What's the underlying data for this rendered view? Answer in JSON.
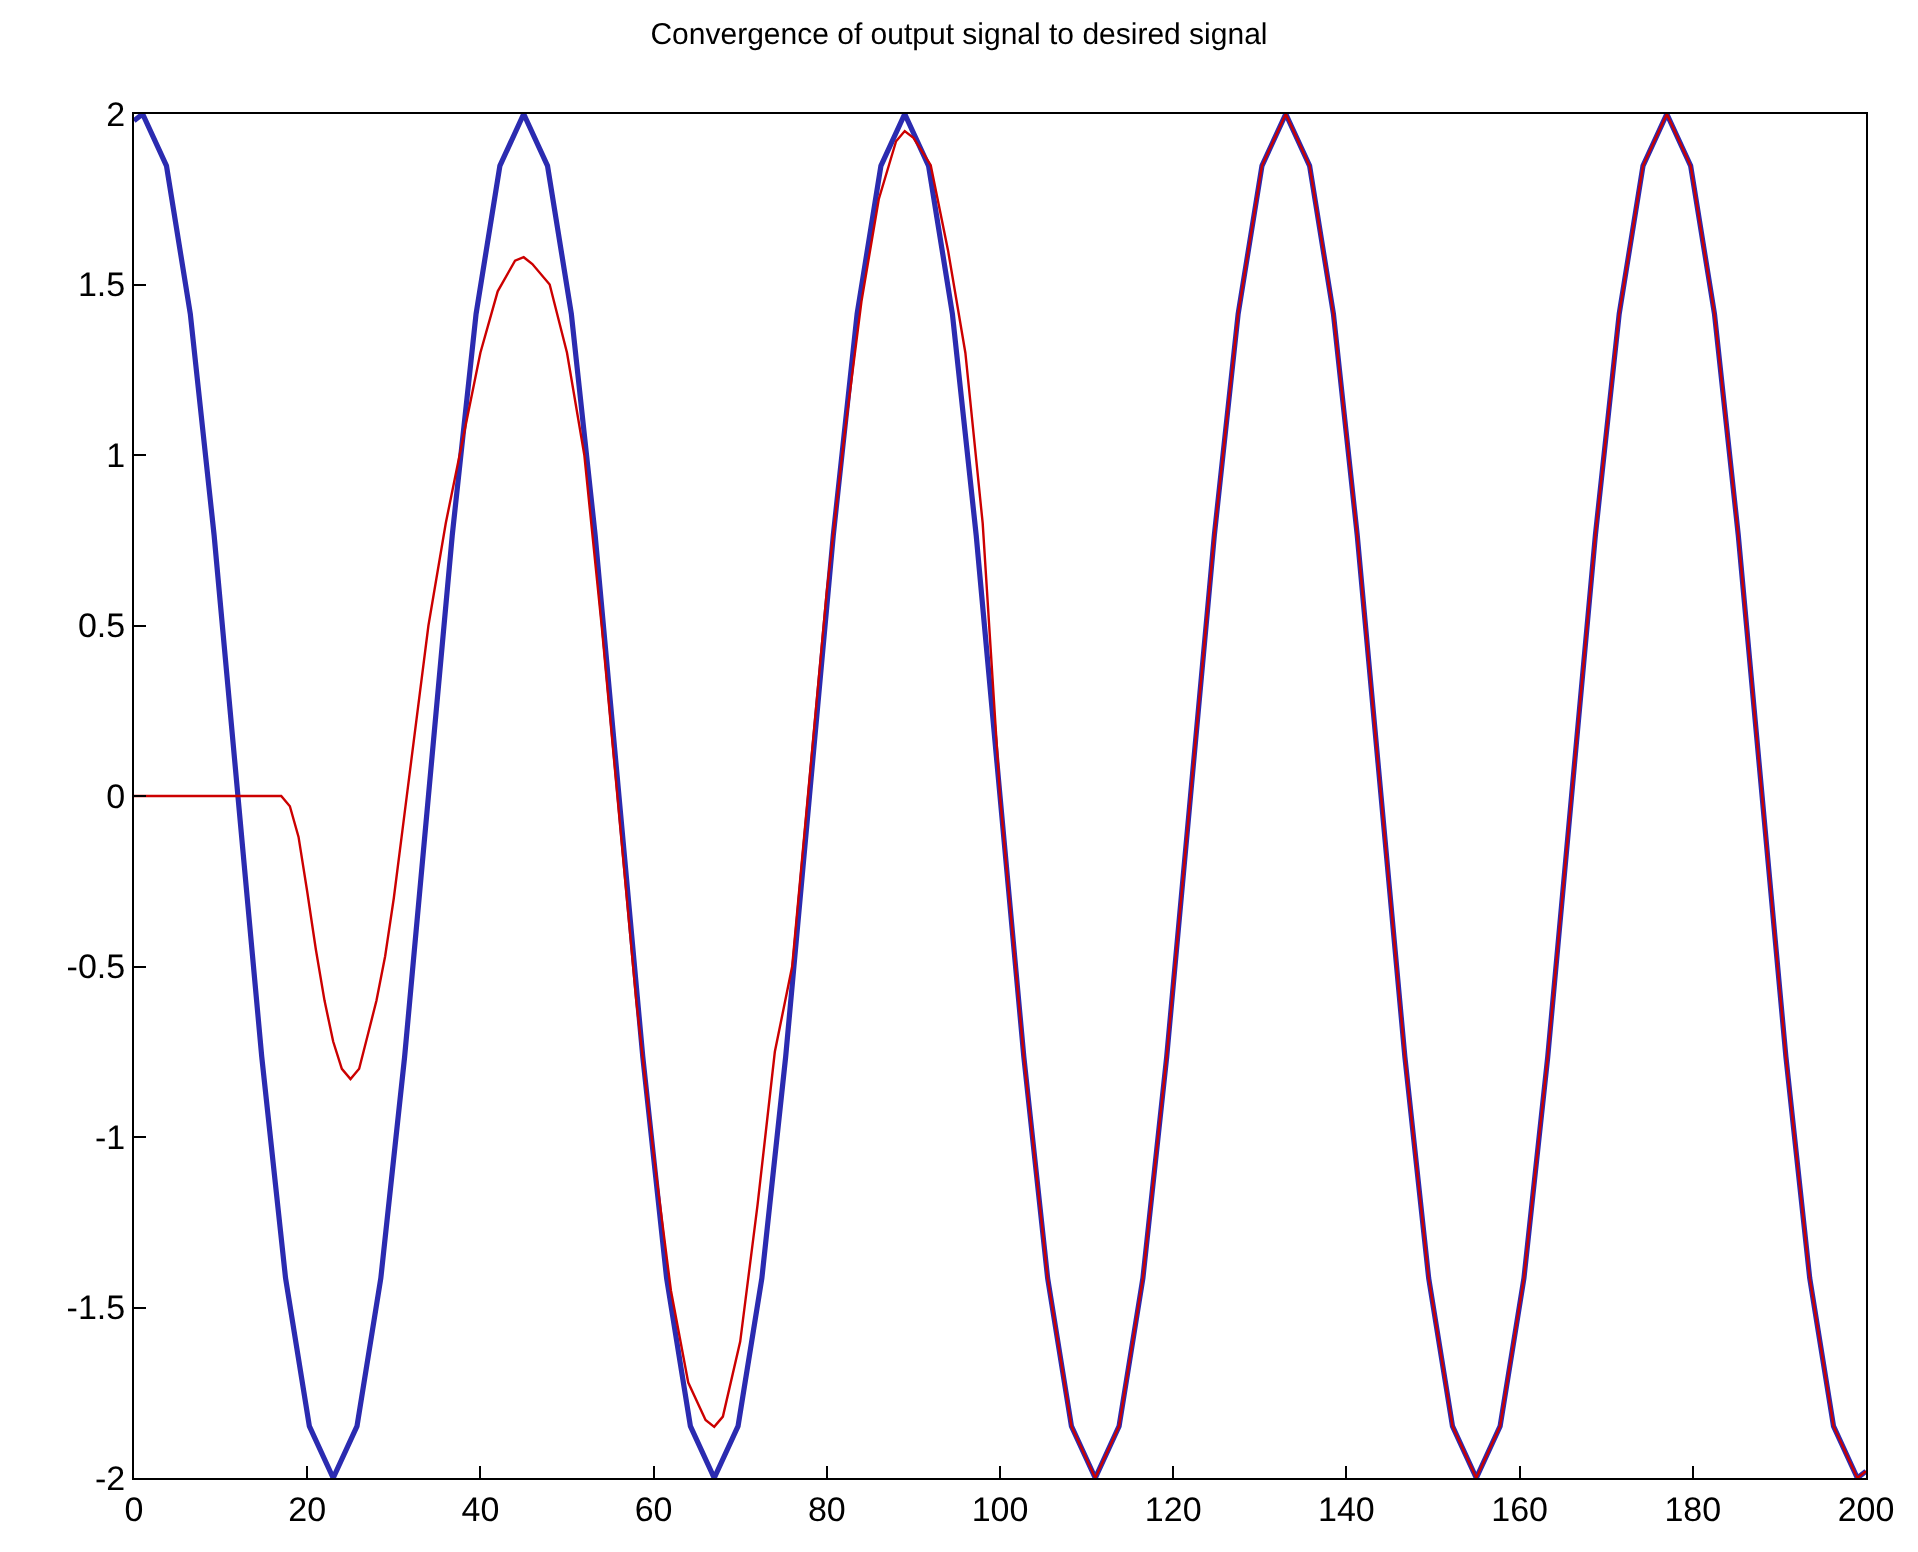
{
  "chart_data": {
    "type": "line",
    "title": "Convergence of output signal to desired signal",
    "xlim": [
      0,
      200
    ],
    "ylim": [
      -2,
      2
    ],
    "xticks": [
      0,
      20,
      40,
      60,
      80,
      100,
      120,
      140,
      160,
      180,
      200
    ],
    "yticks": [
      -2,
      -1.5,
      -1,
      -0.5,
      0,
      0.5,
      1,
      1.5,
      2
    ],
    "marker": "none",
    "line_style": "solid",
    "series": [
      {
        "color": "#2b2bb0",
        "x": [
          0,
          1,
          3.75,
          6.5,
          9.25,
          12,
          14.75,
          17.5,
          20.25,
          23,
          25.75,
          28.5,
          31.25,
          34,
          36.75,
          39.5,
          42.25,
          45,
          47.75,
          50.5,
          53.25,
          56,
          58.75,
          61.5,
          64.25,
          67,
          69.75,
          72.5,
          75.25,
          78,
          80.75,
          83.5,
          86.25,
          89,
          91.75,
          94.5,
          97.25,
          100,
          102.75,
          105.5,
          108.25,
          111,
          113.75,
          116.5,
          119.25,
          122,
          124.75,
          127.5,
          130.25,
          133,
          135.75,
          138.5,
          141.25,
          144,
          146.75,
          149.5,
          152.25,
          155,
          157.75,
          160.5,
          163.25,
          166,
          168.75,
          171.5,
          174.25,
          177,
          179.75,
          182.5,
          185.25,
          188,
          190.75,
          193.5,
          196.25,
          199,
          200
        ],
        "values": [
          1.98,
          2,
          1.848,
          1.414,
          0.765,
          0,
          -0.765,
          -1.414,
          -1.848,
          -2,
          -1.848,
          -1.414,
          -0.765,
          0,
          0.765,
          1.414,
          1.848,
          2,
          1.848,
          1.414,
          0.765,
          0,
          -0.765,
          -1.414,
          -1.848,
          -2,
          -1.848,
          -1.414,
          -0.765,
          0,
          0.765,
          1.414,
          1.848,
          2,
          1.848,
          1.414,
          0.765,
          0,
          -0.765,
          -1.414,
          -1.848,
          -2,
          -1.848,
          -1.414,
          -0.765,
          0,
          0.765,
          1.414,
          1.848,
          2,
          1.848,
          1.414,
          0.765,
          0,
          -0.765,
          -1.414,
          -1.848,
          -2,
          -1.848,
          -1.414,
          -0.765,
          0,
          0.765,
          1.414,
          1.848,
          2,
          1.848,
          1.414,
          0.765,
          0,
          -0.765,
          -1.414,
          -1.848,
          -2,
          -1.98
        ]
      },
      {
        "color": "#cc0000",
        "x": [
          0,
          17,
          18,
          19,
          20,
          21,
          22,
          23,
          24,
          25,
          26,
          27,
          28,
          29,
          30,
          31,
          32,
          33,
          34,
          36,
          38,
          40,
          42,
          44,
          45,
          46,
          48,
          50,
          52,
          54,
          56,
          58,
          60,
          62,
          64,
          66,
          67,
          68,
          70,
          72,
          74,
          76,
          78,
          80,
          82,
          84,
          86,
          88,
          89,
          90,
          92,
          94,
          96,
          98,
          100,
          102.75,
          105.5,
          108.25,
          111,
          113.75,
          116.5,
          119.25,
          122,
          124.75,
          127.5,
          130.25,
          133,
          135.75,
          138.5,
          141.25,
          144,
          146.75,
          149.5,
          152.25,
          155,
          157.75,
          160.5,
          163.25,
          166,
          168.75,
          171.5,
          174.25,
          177,
          179.75,
          182.5,
          185.25,
          188,
          190.75,
          193.5,
          196.25,
          199,
          200
        ],
        "values": [
          0,
          0,
          -0.03,
          -0.12,
          -0.28,
          -0.45,
          -0.6,
          -0.72,
          -0.8,
          -0.83,
          -0.8,
          -0.7,
          -0.6,
          -0.47,
          -0.3,
          -0.1,
          0.1,
          0.3,
          0.5,
          0.8,
          1.05,
          1.3,
          1.48,
          1.57,
          1.58,
          1.56,
          1.5,
          1.3,
          1.0,
          0.5,
          -0.05,
          -0.6,
          -1.05,
          -1.45,
          -1.72,
          -1.83,
          -1.85,
          -1.82,
          -1.6,
          -1.2,
          -0.75,
          -0.5,
          0.05,
          0.6,
          1.05,
          1.45,
          1.75,
          1.92,
          1.95,
          1.93,
          1.85,
          1.6,
          1.3,
          0.8,
          0,
          -0.765,
          -1.414,
          -1.848,
          -2,
          -1.848,
          -1.414,
          -0.765,
          0,
          0.765,
          1.414,
          1.848,
          2,
          1.848,
          1.414,
          0.765,
          0,
          -0.765,
          -1.414,
          -1.848,
          -2,
          -1.848,
          -1.414,
          -0.765,
          0,
          0.765,
          1.414,
          1.848,
          2,
          1.848,
          1.414,
          0.765,
          0,
          -0.765,
          -1.414,
          -1.848,
          -2,
          -1.98
        ]
      }
    ]
  }
}
